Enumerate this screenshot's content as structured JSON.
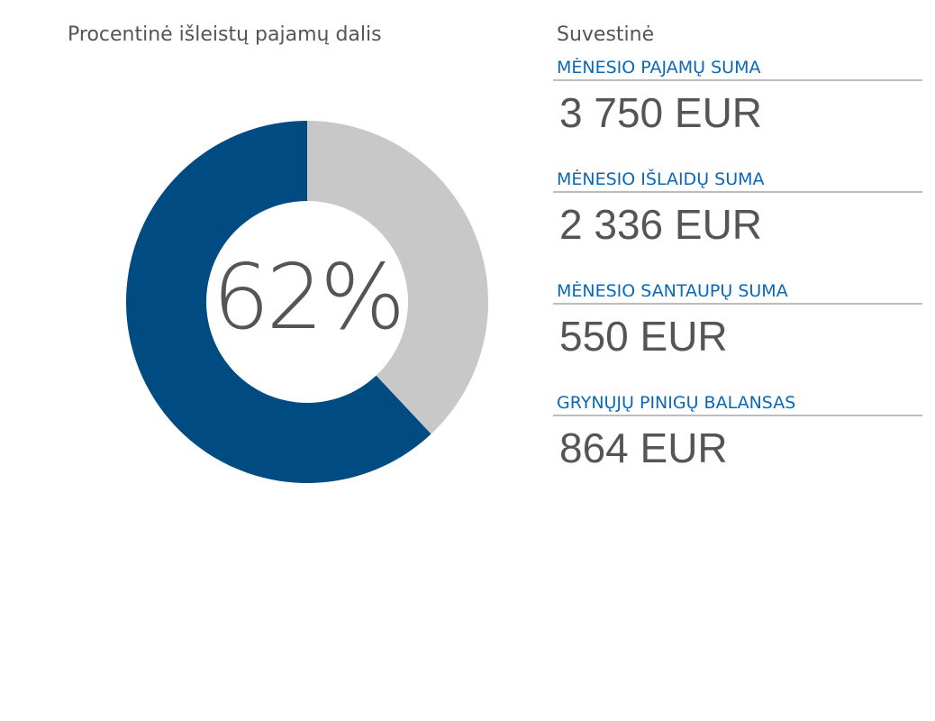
{
  "chart_data": {
    "type": "pie",
    "variant": "donut",
    "title": "Procentinė išleistų pajamų dalis",
    "center_label": "62%",
    "slices": [
      {
        "value": 62,
        "color": "#004b82"
      },
      {
        "value": 38,
        "color": "#c8c8c8"
      }
    ]
  },
  "summary": {
    "title": "Suvestinė",
    "items": [
      {
        "label": "MĖNESIO PAJAMŲ SUMA",
        "value": "3 750 EUR"
      },
      {
        "label": "MĖNESIO IŠLAIDŲ SUMA",
        "value": "2 336 EUR"
      },
      {
        "label": "MĖNESIO SANTAUPŲ SUMA",
        "value": "550 EUR"
      },
      {
        "label": "GRYNŲJŲ PINIGŲ BALANSAS",
        "value": "864 EUR"
      }
    ]
  },
  "colors": {
    "accent": "#0a68b8",
    "text": "#555555"
  }
}
